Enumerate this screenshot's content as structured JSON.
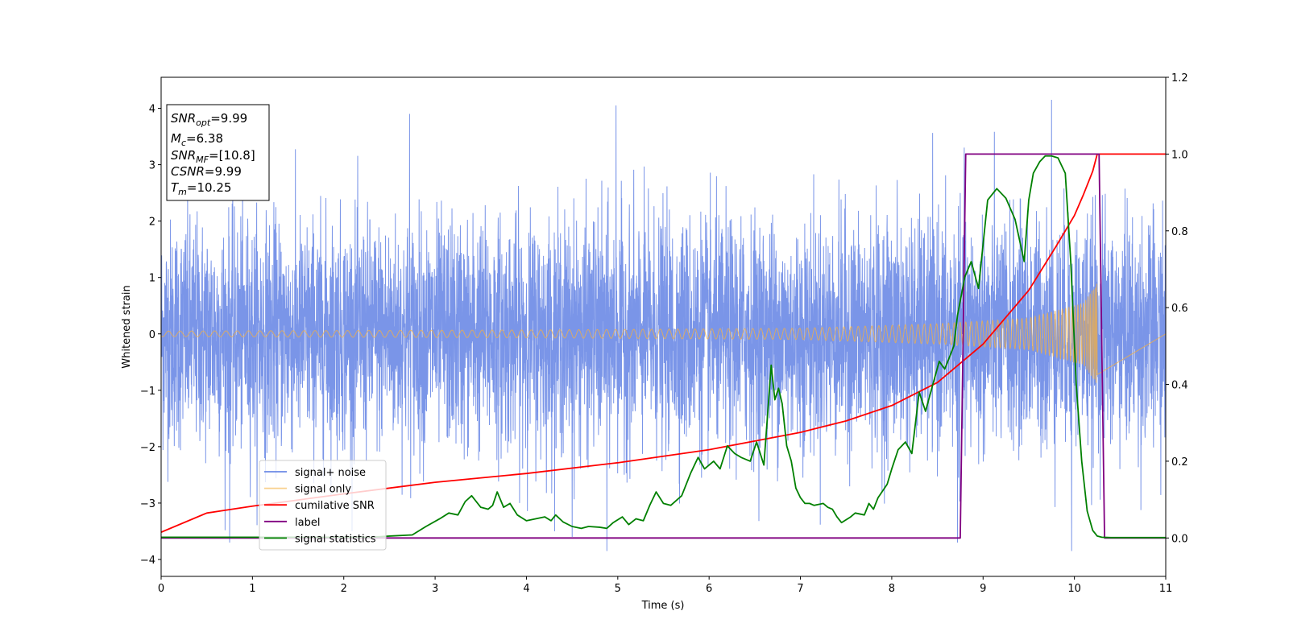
{
  "chart_data": {
    "type": "line",
    "xlabel": "Time (s)",
    "ylabel": "Whitened strain",
    "xlim": [
      0,
      11
    ],
    "ylim_left": [
      -4.3,
      4.55
    ],
    "ylim_right": [
      -0.1,
      1.2
    ],
    "xticks": [
      0,
      1,
      2,
      3,
      4,
      5,
      6,
      7,
      8,
      9,
      10,
      11
    ],
    "yticks_left": [
      -4,
      -3,
      -2,
      -1,
      0,
      1,
      2,
      3,
      4
    ],
    "yticks_right": [
      "0.0",
      "0.2",
      "0.4",
      "0.6",
      "0.8",
      "1.0",
      "1.2"
    ],
    "grid": false,
    "legend": {
      "position": "lower-left",
      "entries": [
        "signal+ noise",
        "signal only",
        "cumilative SNR",
        "label",
        "signal statistics"
      ]
    },
    "annotation": {
      "snr_opt": {
        "sym": "SNR",
        "sub": "opt",
        "value": "=9.99"
      },
      "mc": {
        "sym": "M",
        "sub": "c",
        "value": "=6.38"
      },
      "snr_mf": {
        "sym": "SNR",
        "sub": "MF",
        "value": "=[10.8]"
      },
      "csnr": {
        "sym": "CSNR",
        "value": "=9.99"
      },
      "tm": {
        "sym": "T",
        "sub": "m",
        "value": "=10.25"
      }
    },
    "series": [
      {
        "name": "signal+ noise",
        "axis": "left",
        "color": "#6b8ae6",
        "style": "noise",
        "sigma": 1.0,
        "x_range": [
          0,
          11
        ],
        "notable_peaks": [
          {
            "x": 2.72,
            "y": 3.9
          },
          {
            "x": 4.98,
            "y": 4.05
          },
          {
            "x": 9.75,
            "y": 4.15
          },
          {
            "x": 4.88,
            "y": -3.85
          },
          {
            "x": 9.97,
            "y": -3.85
          },
          {
            "x": 4.5,
            "y": -3.6
          },
          {
            "x": 0.75,
            "y": -3.7
          },
          {
            "x": 8.72,
            "y": -3.7
          }
        ]
      },
      {
        "name": "signal only",
        "axis": "left",
        "color": "#f5b041",
        "style": "chirp",
        "x_range": [
          0,
          10.25
        ],
        "amplitude_envelope": [
          [
            0,
            0.05
          ],
          [
            4,
            0.07
          ],
          [
            7,
            0.1
          ],
          [
            8.5,
            0.18
          ],
          [
            9.5,
            0.28
          ],
          [
            10.1,
            0.55
          ],
          [
            10.25,
            0.9
          ]
        ]
      },
      {
        "name": "cumilative SNR",
        "axis": "right",
        "color": "#ff0000",
        "x": [
          0,
          0.5,
          1,
          2,
          3,
          4,
          5,
          6,
          7,
          7.5,
          8,
          8.5,
          9,
          9.5,
          9.8,
          10,
          10.1,
          10.2,
          10.25,
          11
        ],
        "y": [
          0.015,
          0.065,
          0.083,
          0.115,
          0.145,
          0.168,
          0.196,
          0.23,
          0.275,
          0.305,
          0.345,
          0.405,
          0.505,
          0.645,
          0.76,
          0.84,
          0.895,
          0.955,
          1.0,
          1.0
        ]
      },
      {
        "name": "label",
        "axis": "right",
        "color": "#800080",
        "x": [
          0,
          8.75,
          8.81,
          10.27,
          10.33,
          11
        ],
        "y": [
          0,
          0,
          1,
          1,
          0,
          0
        ]
      },
      {
        "name": "signal statistics",
        "axis": "right",
        "color": "#008000",
        "x": [
          0,
          2.3,
          2.5,
          2.75,
          2.9,
          3.05,
          3.15,
          3.25,
          3.33,
          3.4,
          3.5,
          3.58,
          3.63,
          3.68,
          3.75,
          3.82,
          3.9,
          4.0,
          4.1,
          4.2,
          4.27,
          4.32,
          4.4,
          4.5,
          4.6,
          4.68,
          4.8,
          4.88,
          4.95,
          5.05,
          5.12,
          5.2,
          5.28,
          5.35,
          5.42,
          5.5,
          5.58,
          5.7,
          5.8,
          5.88,
          5.95,
          6.05,
          6.12,
          6.2,
          6.28,
          6.35,
          6.45,
          6.52,
          6.6,
          6.68,
          6.72,
          6.76,
          6.8,
          6.85,
          6.9,
          6.95,
          7.0,
          7.05,
          7.1,
          7.15,
          7.25,
          7.3,
          7.35,
          7.4,
          7.45,
          7.55,
          7.6,
          7.7,
          7.75,
          7.8,
          7.85,
          7.95,
          8.0,
          8.07,
          8.15,
          8.22,
          8.3,
          8.37,
          8.45,
          8.52,
          8.58,
          8.63,
          8.68,
          8.72,
          8.8,
          8.87,
          8.95,
          9.05,
          9.15,
          9.25,
          9.35,
          9.45,
          9.5,
          9.55,
          9.62,
          9.68,
          9.75,
          9.82,
          9.9,
          9.96,
          10.02,
          10.08,
          10.14,
          10.2,
          10.25,
          10.3,
          10.4,
          10.6,
          11
        ],
        "y": [
          0.002,
          0.002,
          0.005,
          0.008,
          0.03,
          0.05,
          0.065,
          0.06,
          0.095,
          0.11,
          0.08,
          0.075,
          0.085,
          0.12,
          0.08,
          0.09,
          0.06,
          0.045,
          0.05,
          0.055,
          0.045,
          0.06,
          0.042,
          0.03,
          0.025,
          0.03,
          0.028,
          0.025,
          0.04,
          0.055,
          0.035,
          0.05,
          0.045,
          0.085,
          0.12,
          0.09,
          0.085,
          0.11,
          0.17,
          0.21,
          0.18,
          0.2,
          0.18,
          0.24,
          0.22,
          0.21,
          0.2,
          0.25,
          0.19,
          0.45,
          0.36,
          0.39,
          0.35,
          0.24,
          0.2,
          0.13,
          0.105,
          0.09,
          0.09,
          0.085,
          0.09,
          0.08,
          0.075,
          0.055,
          0.04,
          0.055,
          0.065,
          0.06,
          0.09,
          0.075,
          0.105,
          0.14,
          0.18,
          0.23,
          0.25,
          0.22,
          0.38,
          0.33,
          0.4,
          0.46,
          0.44,
          0.47,
          0.5,
          0.58,
          0.68,
          0.72,
          0.65,
          0.88,
          0.91,
          0.885,
          0.83,
          0.72,
          0.88,
          0.95,
          0.98,
          0.995,
          0.995,
          0.99,
          0.95,
          0.72,
          0.4,
          0.2,
          0.07,
          0.02,
          0.005,
          0.002,
          0.001,
          0.001,
          0.001
        ]
      }
    ]
  }
}
